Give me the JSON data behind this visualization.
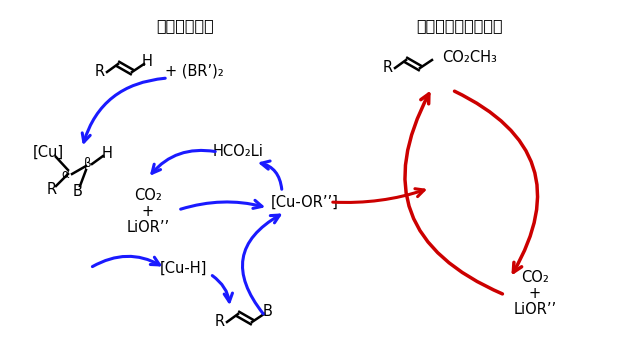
{
  "blue_color": "#1a1aff",
  "red_color": "#cc0000",
  "black_color": "#000000",
  "bg_color": "#FFFFFF",
  "figsize": [
    6.2,
    3.63
  ],
  "dpi": 100,
  "title_left": "ホウ素化反応",
  "title_right": "カルボキシル化反応",
  "label_hco2li": "HCO₂Li",
  "label_co2_lior_left": "CO₂\n+\nLiOR’’",
  "label_cu_or": "[Cu-OR’’]",
  "label_cu_h": "[Cu-H]",
  "label_co2_lior_right": "CO₂\n+\nLiOR’’",
  "label_bor_reagent": "+ (BR’)₂"
}
